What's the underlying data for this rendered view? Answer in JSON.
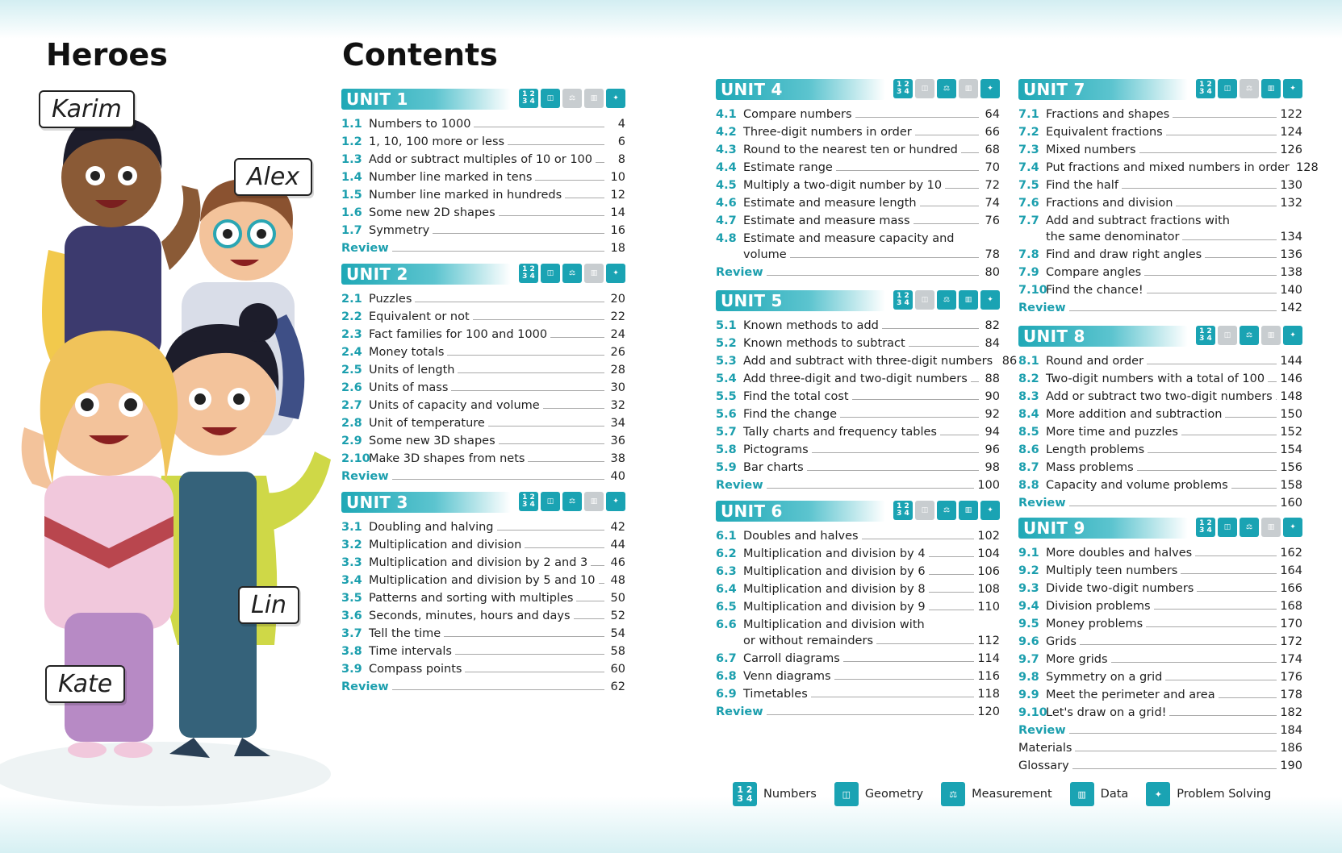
{
  "titles": {
    "heroes": "Heroes",
    "contents": "Contents"
  },
  "heroes": [
    "Karim",
    "Alex",
    "Lin",
    "Kate"
  ],
  "legend": [
    {
      "label": "Numbers",
      "icon": "numbers-icon"
    },
    {
      "label": "Geometry",
      "icon": "geometry-icon"
    },
    {
      "label": "Measurement",
      "icon": "measurement-icon"
    },
    {
      "label": "Data",
      "icon": "data-icon"
    },
    {
      "label": "Problem Solving",
      "icon": "problem-solving-icon"
    }
  ],
  "units": [
    {
      "label": "UNIT 1",
      "icons": [
        1,
        1,
        0,
        0,
        1
      ],
      "rows": [
        {
          "n": "1.1",
          "t": "Numbers to 1000",
          "p": "4"
        },
        {
          "n": "1.2",
          "t": "1, 10, 100 more or less",
          "p": "6"
        },
        {
          "n": "1.3",
          "t": "Add or subtract multiples of 10 or 100",
          "p": "8"
        },
        {
          "n": "1.4",
          "t": "Number line marked in tens",
          "p": "10"
        },
        {
          "n": "1.5",
          "t": "Number line marked in hundreds",
          "p": "12"
        },
        {
          "n": "1.6",
          "t": "Some new 2D shapes",
          "p": "14"
        },
        {
          "n": "1.7",
          "t": "Symmetry",
          "p": "16"
        },
        {
          "n": "",
          "t": "Review",
          "p": "18",
          "review": true
        }
      ]
    },
    {
      "label": "UNIT 2",
      "icons": [
        1,
        1,
        1,
        0,
        1
      ],
      "rows": [
        {
          "n": "2.1",
          "t": "Puzzles",
          "p": "20"
        },
        {
          "n": "2.2",
          "t": "Equivalent or not",
          "p": "22"
        },
        {
          "n": "2.3",
          "t": "Fact families for 100 and 1000",
          "p": "24"
        },
        {
          "n": "2.4",
          "t": "Money totals",
          "p": "26"
        },
        {
          "n": "2.5",
          "t": "Units of length",
          "p": "28"
        },
        {
          "n": "2.6",
          "t": "Units of mass",
          "p": "30"
        },
        {
          "n": "2.7",
          "t": "Units of capacity and volume",
          "p": "32"
        },
        {
          "n": "2.8",
          "t": "Unit of temperature",
          "p": "34"
        },
        {
          "n": "2.9",
          "t": "Some new 3D shapes",
          "p": "36"
        },
        {
          "n": "2.10",
          "t": "Make 3D shapes from nets",
          "p": "38"
        },
        {
          "n": "",
          "t": "Review",
          "p": "40",
          "review": true
        }
      ]
    },
    {
      "label": "UNIT 3",
      "icons": [
        1,
        1,
        1,
        0,
        1
      ],
      "rows": [
        {
          "n": "3.1",
          "t": "Doubling and halving",
          "p": "42"
        },
        {
          "n": "3.2",
          "t": "Multiplication and division",
          "p": "44"
        },
        {
          "n": "3.3",
          "t": "Multiplication and division by 2 and 3",
          "p": "46"
        },
        {
          "n": "3.4",
          "t": "Multiplication and division by 5 and 10",
          "p": "48"
        },
        {
          "n": "3.5",
          "t": "Patterns and sorting with multiples",
          "p": "50"
        },
        {
          "n": "3.6",
          "t": "Seconds, minutes, hours and days",
          "p": "52"
        },
        {
          "n": "3.7",
          "t": "Tell the time",
          "p": "54"
        },
        {
          "n": "3.8",
          "t": "Time intervals",
          "p": "58"
        },
        {
          "n": "3.9",
          "t": "Compass points",
          "p": "60"
        },
        {
          "n": "",
          "t": "Review",
          "p": "62",
          "review": true
        }
      ]
    },
    {
      "label": "UNIT 4",
      "icons": [
        1,
        0,
        1,
        0,
        1
      ],
      "rows": [
        {
          "n": "4.1",
          "t": "Compare numbers",
          "p": "64"
        },
        {
          "n": "4.2",
          "t": "Three-digit numbers in order",
          "p": "66"
        },
        {
          "n": "4.3",
          "t": "Round to the nearest ten or hundred",
          "p": "68"
        },
        {
          "n": "4.4",
          "t": "Estimate range",
          "p": "70"
        },
        {
          "n": "4.5",
          "t": "Multiply a two-digit number by 10",
          "p": "72"
        },
        {
          "n": "4.6",
          "t": "Estimate and measure length",
          "p": "74"
        },
        {
          "n": "4.7",
          "t": "Estimate and measure mass",
          "p": "76"
        },
        {
          "n": "4.8",
          "t": "Estimate and measure capacity and",
          "p": "",
          "cont": "volume",
          "cp": "78"
        },
        {
          "n": "",
          "t": "Review",
          "p": "80",
          "review": true
        }
      ]
    },
    {
      "label": "UNIT 5",
      "icons": [
        1,
        0,
        1,
        1,
        1
      ],
      "rows": [
        {
          "n": "5.1",
          "t": "Known methods to add",
          "p": "82"
        },
        {
          "n": "5.2",
          "t": "Known methods to subtract",
          "p": "84"
        },
        {
          "n": "5.3",
          "t": "Add and subtract with three-digit numbers",
          "p": "86"
        },
        {
          "n": "5.4",
          "t": "Add three-digit and two-digit numbers",
          "p": "88"
        },
        {
          "n": "5.5",
          "t": "Find the total cost",
          "p": "90"
        },
        {
          "n": "5.6",
          "t": "Find the change",
          "p": "92"
        },
        {
          "n": "5.7",
          "t": "Tally charts and frequency tables",
          "p": "94"
        },
        {
          "n": "5.8",
          "t": "Pictograms",
          "p": "96"
        },
        {
          "n": "5.9",
          "t": "Bar charts",
          "p": "98"
        },
        {
          "n": "",
          "t": "Review",
          "p": "100",
          "review": true
        }
      ]
    },
    {
      "label": "UNIT 6",
      "icons": [
        1,
        0,
        1,
        1,
        1
      ],
      "rows": [
        {
          "n": "6.1",
          "t": "Doubles and halves",
          "p": "102"
        },
        {
          "n": "6.2",
          "t": "Multiplication and division by 4",
          "p": "104"
        },
        {
          "n": "6.3",
          "t": "Multiplication and division by 6",
          "p": "106"
        },
        {
          "n": "6.4",
          "t": "Multiplication and division by 8",
          "p": "108"
        },
        {
          "n": "6.5",
          "t": "Multiplication and division by 9",
          "p": "110"
        },
        {
          "n": "6.6",
          "t": "Multiplication and division with",
          "p": "",
          "cont": "or without remainders",
          "cp": "112"
        },
        {
          "n": "6.7",
          "t": "Carroll diagrams",
          "p": "114"
        },
        {
          "n": "6.8",
          "t": "Venn diagrams",
          "p": "116"
        },
        {
          "n": "6.9",
          "t": "Timetables",
          "p": "118"
        },
        {
          "n": "",
          "t": "Review",
          "p": "120",
          "review": true
        }
      ]
    },
    {
      "label": "UNIT 7",
      "icons": [
        1,
        1,
        0,
        1,
        1
      ],
      "rows": [
        {
          "n": "7.1",
          "t": "Fractions and shapes",
          "p": "122"
        },
        {
          "n": "7.2",
          "t": "Equivalent fractions",
          "p": "124"
        },
        {
          "n": "7.3",
          "t": "Mixed numbers",
          "p": "126"
        },
        {
          "n": "7.4",
          "t": "Put fractions and mixed numbers in order",
          "p": "128"
        },
        {
          "n": "7.5",
          "t": "Find the half",
          "p": "130"
        },
        {
          "n": "7.6",
          "t": "Fractions and division",
          "p": "132"
        },
        {
          "n": "7.7",
          "t": "Add and subtract fractions with",
          "p": "",
          "cont": "the same denominator",
          "cp": "134"
        },
        {
          "n": "7.8",
          "t": "Find and draw right angles",
          "p": "136"
        },
        {
          "n": "7.9",
          "t": "Compare angles",
          "p": "138"
        },
        {
          "n": "7.10",
          "t": "Find the chance!",
          "p": "140"
        },
        {
          "n": "",
          "t": "Review",
          "p": "142",
          "review": true
        }
      ]
    },
    {
      "label": "UNIT 8",
      "icons": [
        1,
        0,
        1,
        0,
        1
      ],
      "rows": [
        {
          "n": "8.1",
          "t": "Round and order",
          "p": "144"
        },
        {
          "n": "8.2",
          "t": "Two-digit numbers with a total of 100",
          "p": "146"
        },
        {
          "n": "8.3",
          "t": "Add or subtract two two-digit numbers",
          "p": "148"
        },
        {
          "n": "8.4",
          "t": "More addition and subtraction",
          "p": "150"
        },
        {
          "n": "8.5",
          "t": "More time and puzzles",
          "p": "152"
        },
        {
          "n": "8.6",
          "t": "Length problems",
          "p": "154"
        },
        {
          "n": "8.7",
          "t": "Mass problems",
          "p": "156"
        },
        {
          "n": "8.8",
          "t": "Capacity and volume problems",
          "p": "158"
        },
        {
          "n": "",
          "t": "Review",
          "p": "160",
          "review": true
        }
      ]
    },
    {
      "label": "UNIT 9",
      "icons": [
        1,
        1,
        1,
        0,
        1
      ],
      "rows": [
        {
          "n": "9.1",
          "t": "More doubles and halves",
          "p": "162"
        },
        {
          "n": "9.2",
          "t": "Multiply teen numbers",
          "p": "164"
        },
        {
          "n": "9.3",
          "t": "Divide two-digit numbers",
          "p": "166"
        },
        {
          "n": "9.4",
          "t": "Division problems",
          "p": "168"
        },
        {
          "n": "9.5",
          "t": "Money problems",
          "p": "170"
        },
        {
          "n": "9.6",
          "t": "Grids",
          "p": "172"
        },
        {
          "n": "9.7",
          "t": "More grids",
          "p": "174"
        },
        {
          "n": "9.8",
          "t": "Symmetry on a grid",
          "p": "176"
        },
        {
          "n": "9.9",
          "t": "Meet the perimeter and area",
          "p": "178"
        },
        {
          "n": "9.10",
          "t": "Let's draw on a grid!",
          "p": "182"
        },
        {
          "n": "",
          "t": "Review",
          "p": "184",
          "review": true
        },
        {
          "n": "",
          "t": "Materials",
          "p": "186",
          "plain": true
        },
        {
          "n": "",
          "t": "Glossary",
          "p": "190",
          "plain": true
        }
      ]
    }
  ]
}
